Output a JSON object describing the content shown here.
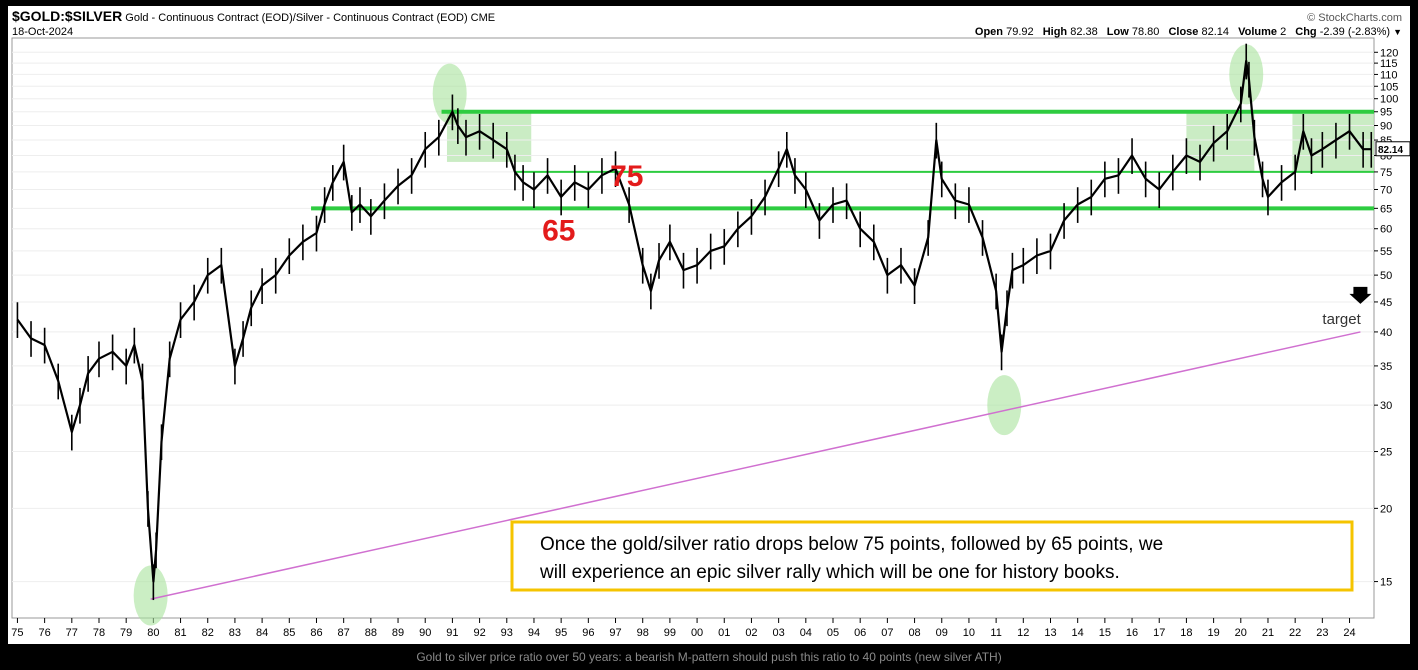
{
  "header": {
    "symbol": "$GOLD:$SILVER",
    "description": "Gold - Continuous Contract (EOD)/Silver - Continuous Contract (EOD)",
    "exchange": "CME",
    "date": "18-Oct-2024",
    "brand": "© StockCharts.com",
    "ohlc": [
      {
        "label": "Open",
        "value": "79.92"
      },
      {
        "label": "High",
        "value": "82.38"
      },
      {
        "label": "Low",
        "value": "78.80"
      },
      {
        "label": "Close",
        "value": "82.14"
      },
      {
        "label": "Volume",
        "value": "2"
      },
      {
        "label": "Chg",
        "value": "-2.39 (-2.83%)"
      }
    ],
    "chg_color": "#000000"
  },
  "annotations": {
    "level_75": "75",
    "level_65": "65",
    "target_label": "target",
    "last_value": "82.14",
    "callout": "Once the gold/silver ratio drops below 75 points, followed by 65 points, we will experience an epic silver rally which will be one for history books.",
    "level_color": "#e31b1b",
    "support_color": "#2ecc40",
    "trend_color": "#d070d0",
    "callout_border": "#f5c400"
  },
  "caption": "Gold to silver price ratio over 50 years: a bearish M-pattern should push this ratio to 40 points (new silver ATH)",
  "chart_data": {
    "type": "line",
    "x_labels": [
      "75",
      "76",
      "77",
      "78",
      "79",
      "80",
      "81",
      "82",
      "83",
      "84",
      "85",
      "86",
      "87",
      "88",
      "89",
      "90",
      "91",
      "92",
      "93",
      "94",
      "95",
      "96",
      "97",
      "98",
      "99",
      "00",
      "01",
      "02",
      "03",
      "04",
      "05",
      "06",
      "07",
      "08",
      "09",
      "10",
      "11",
      "12",
      "13",
      "14",
      "15",
      "16",
      "17",
      "18",
      "19",
      "20",
      "21",
      "22",
      "23",
      "24"
    ],
    "y_scale": "log",
    "y_ticks": [
      15,
      20,
      25,
      30,
      35,
      40,
      45,
      50,
      55,
      60,
      65,
      70,
      75,
      80,
      85,
      90,
      95,
      100,
      105,
      110,
      115,
      120
    ],
    "ylim": [
      13,
      123
    ],
    "xlim": [
      1974.8,
      2024.9
    ],
    "series": [
      {
        "x": [
          1975.0,
          1975.5,
          1976.0,
          1976.5,
          1977.0,
          1977.3,
          1977.6,
          1978.0,
          1978.5,
          1979.0,
          1979.3,
          1979.6,
          1979.8,
          1980.0,
          1980.1,
          1980.3,
          1980.6,
          1981.0,
          1981.5,
          1982.0,
          1982.5,
          1983.0,
          1983.3,
          1983.6,
          1984.0,
          1984.5,
          1985.0,
          1985.5,
          1986.0,
          1986.3,
          1986.6,
          1987.0,
          1987.3,
          1987.6,
          1988.0,
          1988.5,
          1989.0,
          1989.5,
          1990.0,
          1990.5,
          1991.0,
          1991.2,
          1991.5,
          1992.0,
          1992.5,
          1993.0,
          1993.3,
          1993.6,
          1994.0,
          1994.5,
          1995.0,
          1995.5,
          1996.0,
          1996.5,
          1997.0,
          1997.5,
          1998.0,
          1998.3,
          1998.6,
          1999.0,
          1999.5,
          2000.0,
          2000.5,
          2001.0,
          2001.5,
          2002.0,
          2002.5,
          2003.0,
          2003.3,
          2003.6,
          2004.0,
          2004.5,
          2005.0,
          2005.5,
          2006.0,
          2006.5,
          2007.0,
          2007.5,
          2008.0,
          2008.5,
          2008.8,
          2009.0,
          2009.5,
          2010.0,
          2010.5,
          2011.0,
          2011.2,
          2011.4,
          2011.6,
          2012.0,
          2012.5,
          2013.0,
          2013.5,
          2014.0,
          2014.5,
          2015.0,
          2015.5,
          2016.0,
          2016.5,
          2017.0,
          2017.5,
          2018.0,
          2018.5,
          2019.0,
          2019.5,
          2020.0,
          2020.2,
          2020.3,
          2020.5,
          2020.8,
          2021.0,
          2021.5,
          2022.0,
          2022.3,
          2022.6,
          2023.0,
          2023.5,
          2024.0,
          2024.5,
          2024.8
        ],
        "y": [
          42,
          39,
          38,
          33,
          27,
          30,
          34,
          36,
          37,
          35,
          38,
          33,
          20,
          15,
          17,
          26,
          36,
          42,
          45,
          50,
          52,
          35,
          39,
          44,
          48,
          50,
          54,
          57,
          59,
          66,
          72,
          78,
          64,
          66,
          63,
          67,
          71,
          74,
          82,
          86,
          95,
          90,
          86,
          88,
          85,
          82,
          75,
          72,
          70,
          74,
          68,
          72,
          70,
          74,
          76,
          66,
          52,
          47,
          53,
          57,
          51,
          52,
          55,
          56,
          60,
          63,
          68,
          76,
          82,
          74,
          70,
          62,
          66,
          67,
          60,
          57,
          50,
          52,
          48,
          58,
          85,
          73,
          67,
          66,
          58,
          47,
          37,
          44,
          51,
          52,
          54,
          55,
          62,
          66,
          68,
          73,
          74,
          80,
          73,
          70,
          75,
          80,
          78,
          84,
          88,
          98,
          116,
          108,
          86,
          73,
          68,
          72,
          75,
          88,
          80,
          82,
          85,
          88,
          82,
          82
        ]
      }
    ],
    "horizontal_levels": [
      95,
      75,
      65
    ],
    "trendline": {
      "x": [
        1979.9,
        2024.4
      ],
      "y": [
        14,
        40
      ]
    },
    "target_value": 40,
    "highlight_boxes": [
      {
        "x": [
          1990.8,
          1993.9
        ],
        "y": [
          78,
          95
        ]
      },
      {
        "x": [
          2018.0,
          2020.5
        ],
        "y": [
          75,
          95
        ]
      },
      {
        "x": [
          2021.9,
          2024.9
        ],
        "y": [
          75,
          95
        ]
      }
    ],
    "highlight_ellipses": [
      {
        "x": 1990.9,
        "y": 102
      },
      {
        "x": 2020.2,
        "y": 110
      },
      {
        "x": 2011.3,
        "y": 30
      },
      {
        "x": 1979.9,
        "y": 14.2
      }
    ],
    "grid": true
  }
}
